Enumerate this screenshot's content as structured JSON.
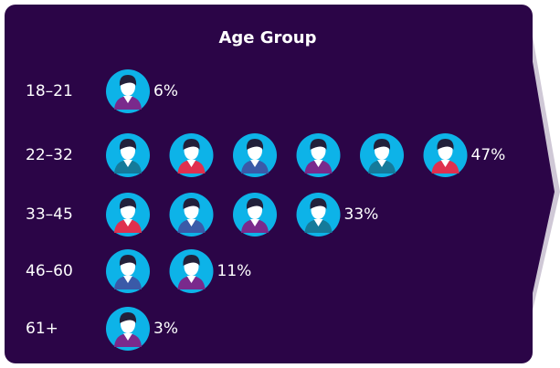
{
  "chart_data": {
    "type": "pictograph",
    "title": "Age Group",
    "categories": [
      "18–21",
      "22–32",
      "33–45",
      "46–60",
      "61+"
    ],
    "values": [
      6,
      47,
      33,
      11,
      3
    ],
    "value_labels": [
      "6%",
      "47%",
      "33%",
      "11%",
      "3%"
    ],
    "icon_counts": [
      1,
      6,
      4,
      2,
      1
    ],
    "color": "#0db3e8"
  }
}
